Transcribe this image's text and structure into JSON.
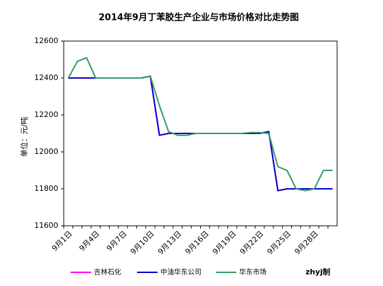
{
  "chart_data": {
    "type": "line",
    "title": "2014年9月丁苯胶生产企业与市场价格对比走势图",
    "y_label": "单位：元/吨",
    "annotation": "zhyj制",
    "categories": [
      "9月1日",
      null,
      null,
      "9月4日",
      null,
      null,
      "9月7日",
      null,
      null,
      "9月10日",
      null,
      null,
      "9月13日",
      null,
      null,
      "9月16日",
      null,
      null,
      "9月19日",
      null,
      null,
      "9月22日",
      null,
      null,
      "9月25日",
      null,
      null,
      "9月28日",
      null,
      null
    ],
    "series": [
      {
        "name": "吉林石化",
        "color": "#ff00ff",
        "values": [
          12400,
          12400,
          12400,
          12400,
          12400,
          12400,
          12400,
          12400,
          12400,
          12410,
          12090,
          12100,
          12100,
          12100,
          12100,
          12100,
          12100,
          12100,
          12100,
          12100,
          12100,
          12100,
          12110,
          11790,
          11800,
          11800,
          11800,
          11800,
          11800,
          11800
        ]
      },
      {
        "name": "中油华东公司",
        "color": "#0000cc",
        "values": [
          12400,
          12400,
          12400,
          12400,
          12400,
          12400,
          12400,
          12400,
          12400,
          12410,
          12090,
          12100,
          12100,
          12100,
          12100,
          12100,
          12100,
          12100,
          12100,
          12100,
          12100,
          12100,
          12110,
          11790,
          11800,
          11800,
          11800,
          11800,
          11800,
          11800
        ]
      },
      {
        "name": "华东市场",
        "color": "#339966",
        "values": [
          12400,
          12490,
          12510,
          12400,
          12400,
          12400,
          12400,
          12400,
          12400,
          12410,
          12250,
          12110,
          12090,
          12090,
          12100,
          12100,
          12100,
          12100,
          12100,
          12100,
          12105,
          12105,
          12100,
          11920,
          11900,
          11800,
          11790,
          11800,
          11900,
          11900
        ]
      }
    ],
    "ylim": [
      11600,
      12600
    ],
    "yticks": [
      11600,
      11800,
      12000,
      12200,
      12400,
      12600
    ],
    "grid": false
  }
}
